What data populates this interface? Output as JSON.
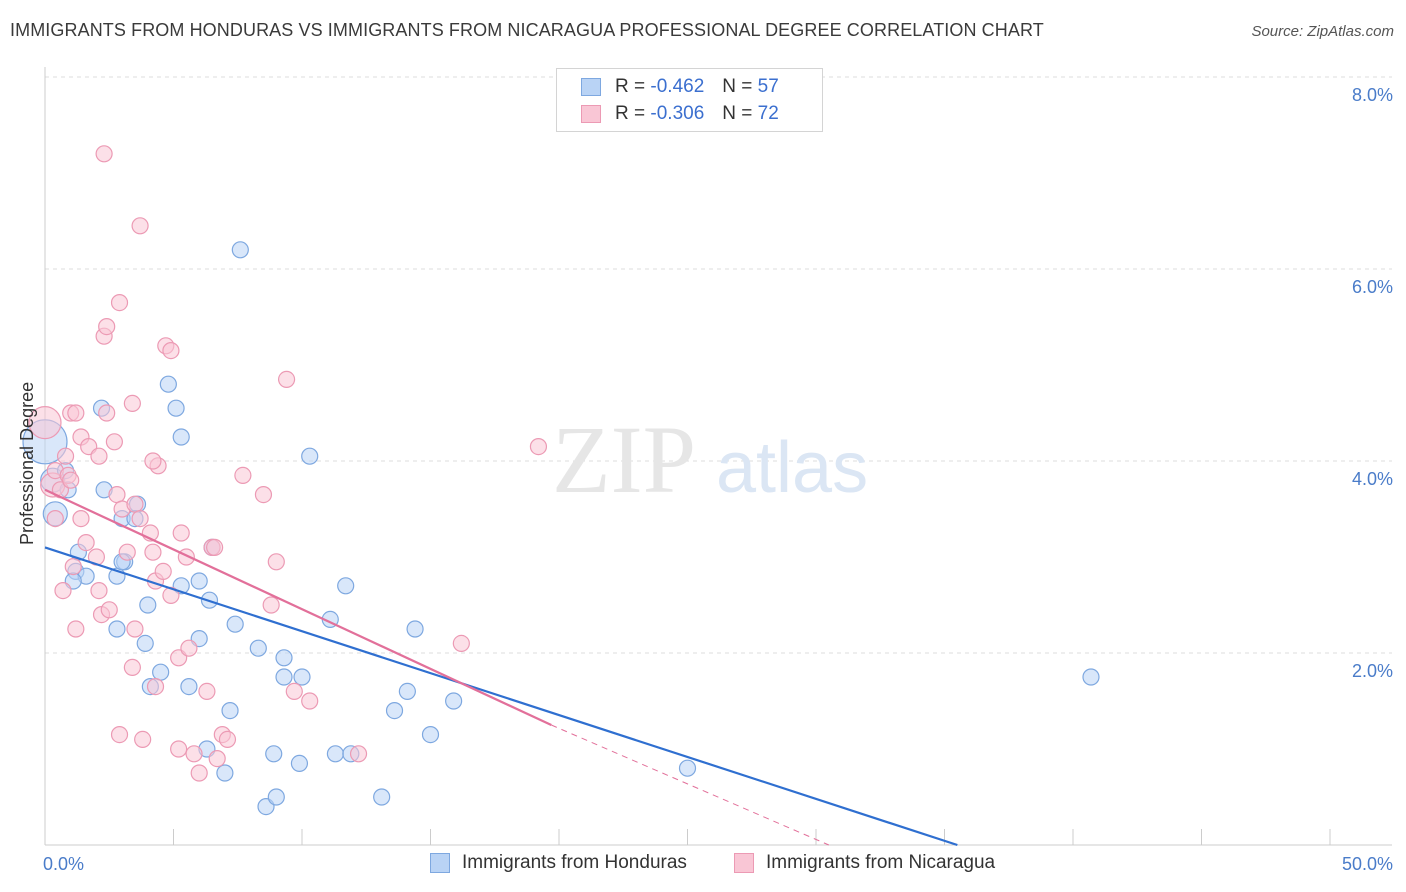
{
  "title": "IMMIGRANTS FROM HONDURAS VS IMMIGRANTS FROM NICARAGUA PROFESSIONAL DEGREE CORRELATION CHART",
  "source": "Source: ZipAtlas.com",
  "watermark": {
    "zip": "ZIP",
    "atlas": "atlas"
  },
  "legend": {
    "honduras": {
      "r_label": "R =",
      "r_value": "-0.462",
      "n_label": "N =",
      "n_value": "57"
    },
    "nicaragua": {
      "r_label": "R =",
      "r_value": "-0.306",
      "n_label": "N =",
      "n_value": "72"
    }
  },
  "colors": {
    "honduras_fill": "#b9d3f5",
    "honduras_stroke": "#7ea8e0",
    "honduras_line": "#2f6fd0",
    "nicaragua_fill": "#f9c6d5",
    "nicaragua_stroke": "#ec9ab4",
    "nicaragua_line": "#e2709a",
    "tick_text": "#4a7cc9",
    "grid": "#dddddd"
  },
  "chart_data": {
    "type": "scatter",
    "title": "IMMIGRANTS FROM HONDURAS VS IMMIGRANTS FROM NICARAGUA PROFESSIONAL DEGREE CORRELATION CHART",
    "xlabel": "",
    "ylabel": "Professional Degree",
    "xlim": [
      0,
      50
    ],
    "ylim": [
      0,
      8.0
    ],
    "x_ticks": [
      "0.0%",
      "50.0%"
    ],
    "y_ticks": [
      {
        "value": 2.0,
        "label": "2.0%"
      },
      {
        "value": 4.0,
        "label": "4.0%"
      },
      {
        "value": 6.0,
        "label": "6.0%"
      },
      {
        "value": 8.0,
        "label": "8.0%"
      }
    ],
    "grid": "horizontal dashed",
    "legend_position": "top-center",
    "series": [
      {
        "name": "Immigrants from Honduras",
        "trend": {
          "x0": 0,
          "y0": 3.1,
          "x1": 35.5,
          "y1": 0.0
        },
        "points": [
          [
            0.0,
            4.2,
            22
          ],
          [
            0.3,
            3.8,
            12
          ],
          [
            0.4,
            3.45,
            12
          ],
          [
            0.9,
            3.7,
            8
          ],
          [
            0.8,
            3.9,
            8
          ],
          [
            1.3,
            3.05,
            8
          ],
          [
            1.2,
            2.85,
            8
          ],
          [
            1.6,
            2.8,
            8
          ],
          [
            1.1,
            2.75,
            8
          ],
          [
            2.3,
            3.7,
            8
          ],
          [
            3.0,
            3.4,
            8
          ],
          [
            3.1,
            2.95,
            8
          ],
          [
            2.8,
            2.8,
            8
          ],
          [
            2.2,
            4.55,
            8
          ],
          [
            3.6,
            3.55,
            8
          ],
          [
            3.5,
            3.4,
            8
          ],
          [
            4.8,
            4.8,
            8
          ],
          [
            5.1,
            4.55,
            8
          ],
          [
            5.3,
            4.25,
            8
          ],
          [
            4.0,
            2.5,
            8
          ],
          [
            5.3,
            2.7,
            8
          ],
          [
            6.0,
            2.75,
            8
          ],
          [
            6.4,
            2.55,
            8
          ],
          [
            6.5,
            3.1,
            8
          ],
          [
            3.9,
            2.1,
            8
          ],
          [
            4.5,
            1.8,
            8
          ],
          [
            4.1,
            1.65,
            8
          ],
          [
            5.6,
            1.65,
            8
          ],
          [
            6.0,
            2.15,
            8
          ],
          [
            7.4,
            2.3,
            8
          ],
          [
            8.3,
            2.05,
            8
          ],
          [
            9.3,
            1.95,
            8
          ],
          [
            9.3,
            1.75,
            8
          ],
          [
            10.0,
            1.75,
            8
          ],
          [
            7.2,
            1.4,
            8
          ],
          [
            6.3,
            1.0,
            8
          ],
          [
            7.0,
            0.75,
            8
          ],
          [
            8.9,
            0.95,
            8
          ],
          [
            9.9,
            0.85,
            8
          ],
          [
            11.3,
            0.95,
            8
          ],
          [
            11.9,
            0.95,
            8
          ],
          [
            8.6,
            0.4,
            8
          ],
          [
            9.0,
            0.5,
            8
          ],
          [
            13.1,
            0.5,
            8
          ],
          [
            10.3,
            4.05,
            8
          ],
          [
            11.7,
            2.7,
            8
          ],
          [
            11.1,
            2.35,
            8
          ],
          [
            13.6,
            1.4,
            8
          ],
          [
            14.1,
            1.6,
            8
          ],
          [
            14.4,
            2.25,
            8
          ],
          [
            15.0,
            1.15,
            8
          ],
          [
            15.9,
            1.5,
            8
          ],
          [
            25.0,
            0.8,
            8
          ],
          [
            40.7,
            1.75,
            8
          ],
          [
            7.6,
            6.2,
            8
          ],
          [
            2.8,
            2.25,
            8
          ],
          [
            3.0,
            2.95,
            8
          ]
        ]
      },
      {
        "name": "Immigrants from Nicaragua",
        "trend": {
          "x0": 0,
          "y0": 3.7,
          "x1": 19.7,
          "y1": 1.25,
          "dash_x1": 30.5,
          "dash_y1": 0.0
        },
        "points": [
          [
            0.0,
            4.4,
            16
          ],
          [
            0.3,
            3.75,
            12
          ],
          [
            0.4,
            3.9,
            8
          ],
          [
            0.6,
            3.7,
            8
          ],
          [
            0.4,
            3.4,
            8
          ],
          [
            0.8,
            4.05,
            8
          ],
          [
            0.9,
            3.85,
            8
          ],
          [
            1.0,
            4.5,
            8
          ],
          [
            1.2,
            4.5,
            8
          ],
          [
            1.4,
            4.25,
            8
          ],
          [
            1.7,
            4.15,
            8
          ],
          [
            2.1,
            4.05,
            8
          ],
          [
            2.4,
            4.5,
            8
          ],
          [
            2.7,
            4.2,
            8
          ],
          [
            1.4,
            3.4,
            8
          ],
          [
            1.6,
            3.15,
            8
          ],
          [
            2.0,
            3.0,
            8
          ],
          [
            2.1,
            2.65,
            8
          ],
          [
            1.1,
            2.9,
            8
          ],
          [
            0.7,
            2.65,
            8
          ],
          [
            1.2,
            2.25,
            8
          ],
          [
            2.2,
            2.4,
            8
          ],
          [
            2.5,
            2.45,
            8
          ],
          [
            2.8,
            3.65,
            8
          ],
          [
            3.0,
            3.5,
            8
          ],
          [
            3.5,
            3.55,
            8
          ],
          [
            3.2,
            3.05,
            8
          ],
          [
            4.1,
            3.25,
            8
          ],
          [
            4.2,
            3.05,
            8
          ],
          [
            3.5,
            2.25,
            8
          ],
          [
            4.3,
            2.75,
            8
          ],
          [
            4.6,
            2.85,
            8
          ],
          [
            4.9,
            2.6,
            8
          ],
          [
            5.3,
            3.25,
            8
          ],
          [
            5.5,
            3.0,
            8
          ],
          [
            5.2,
            1.95,
            8
          ],
          [
            5.6,
            2.05,
            8
          ],
          [
            3.4,
            1.85,
            8
          ],
          [
            4.3,
            1.65,
            8
          ],
          [
            6.3,
            1.6,
            8
          ],
          [
            2.9,
            1.15,
            8
          ],
          [
            3.8,
            1.1,
            8
          ],
          [
            5.2,
            1.0,
            8
          ],
          [
            5.8,
            0.95,
            8
          ],
          [
            6.0,
            0.75,
            8
          ],
          [
            6.7,
            0.9,
            8
          ],
          [
            6.9,
            1.15,
            8
          ],
          [
            7.1,
            1.1,
            8
          ],
          [
            4.4,
            3.95,
            8
          ],
          [
            4.2,
            4.0,
            8
          ],
          [
            3.4,
            4.6,
            8
          ],
          [
            2.3,
            5.3,
            8
          ],
          [
            2.4,
            5.4,
            8
          ],
          [
            2.9,
            5.65,
            8
          ],
          [
            4.7,
            5.2,
            8
          ],
          [
            4.9,
            5.15,
            8
          ],
          [
            2.3,
            7.2,
            8
          ],
          [
            3.7,
            6.45,
            8
          ],
          [
            9.4,
            4.85,
            8
          ],
          [
            7.7,
            3.85,
            8
          ],
          [
            8.5,
            3.65,
            8
          ],
          [
            9.0,
            2.95,
            8
          ],
          [
            8.8,
            2.5,
            8
          ],
          [
            9.7,
            1.6,
            8
          ],
          [
            10.3,
            1.5,
            8
          ],
          [
            6.5,
            3.1,
            8
          ],
          [
            12.2,
            0.95,
            8
          ],
          [
            16.2,
            2.1,
            8
          ],
          [
            19.2,
            4.15,
            8
          ],
          [
            6.6,
            3.1,
            8
          ],
          [
            3.7,
            3.4,
            8
          ],
          [
            1.0,
            3.8,
            8
          ]
        ]
      }
    ]
  },
  "bottom_legend": {
    "honduras": "Immigrants from Honduras",
    "nicaragua": "Immigrants from Nicaragua"
  }
}
